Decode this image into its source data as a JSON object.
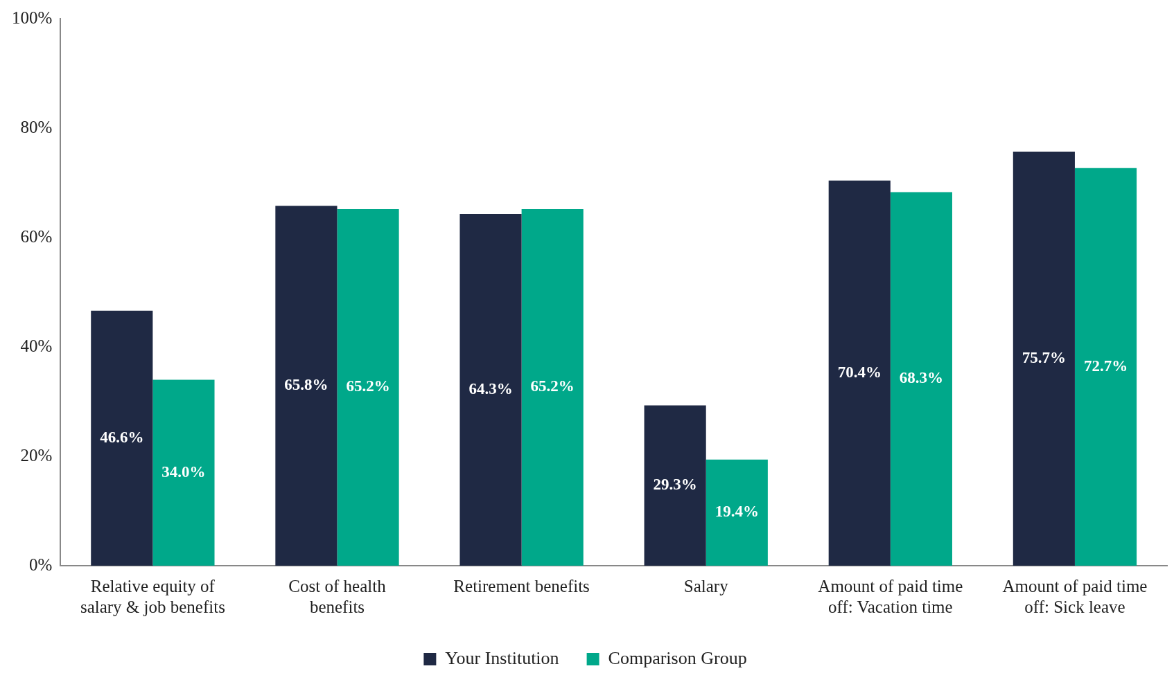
{
  "chart_data": {
    "type": "bar",
    "categories": [
      "Relative equity of salary & job benefits",
      "Cost of health benefits",
      "Retirement benefits",
      "Salary",
      "Amount of paid time off: Vacation time",
      "Amount of paid time off: Sick leave"
    ],
    "series": [
      {
        "name": "Your Institution",
        "color": "#1f2944",
        "values": [
          46.6,
          65.8,
          64.3,
          29.3,
          70.4,
          75.7
        ],
        "value_labels": [
          "46.6%",
          "65.8%",
          "64.3%",
          "29.3%",
          "70.4%",
          "75.7%"
        ]
      },
      {
        "name": "Comparison Group",
        "color": "#00a88a",
        "values": [
          34.0,
          65.2,
          65.2,
          19.4,
          68.3,
          72.7
        ],
        "value_labels": [
          "34.0%",
          "65.2%",
          "65.2%",
          "19.4%",
          "68.3%",
          "72.7%"
        ]
      }
    ],
    "ylim": [
      0,
      100
    ],
    "yticks": [
      {
        "value": 0,
        "label": "0%"
      },
      {
        "value": 20,
        "label": "20%"
      },
      {
        "value": 40,
        "label": "40%"
      },
      {
        "value": 60,
        "label": "60%"
      },
      {
        "value": 80,
        "label": "80%"
      },
      {
        "value": 100,
        "label": "100%"
      }
    ],
    "grid": false,
    "legend": "bottom"
  }
}
